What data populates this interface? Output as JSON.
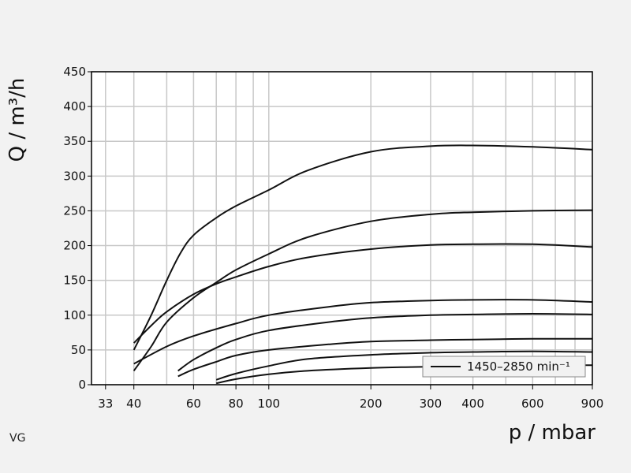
{
  "chart_data": {
    "type": "line",
    "title": "",
    "xlabel": "p / mbar",
    "ylabel": "Q / m³/h",
    "xscale": "log",
    "xlim": [
      30,
      900
    ],
    "ylim": [
      0,
      450
    ],
    "x_ticks": [
      33,
      40,
      60,
      80,
      100,
      200,
      300,
      400,
      600,
      900
    ],
    "x_tick_labels": [
      "33",
      "40",
      "60",
      "80",
      "100",
      "200",
      "300",
      "400",
      "600",
      "900"
    ],
    "x_minor_grid": [
      50,
      70,
      90,
      500,
      700,
      800
    ],
    "y_ticks": [
      0,
      50,
      100,
      150,
      200,
      250,
      300,
      350,
      400,
      450
    ],
    "y_tick_labels": [
      "0",
      "50",
      "100",
      "150",
      "200",
      "250",
      "300",
      "350",
      "400",
      "450"
    ],
    "grid": true,
    "legend": {
      "label": "1450–2850 min⁻¹",
      "placement": "bottom-right"
    },
    "line_color": "#111111",
    "series": [
      {
        "points": [
          [
            40,
            50
          ],
          [
            45,
            100
          ],
          [
            50,
            150
          ],
          [
            55,
            190
          ],
          [
            60,
            215
          ],
          [
            70,
            240
          ],
          [
            80,
            257
          ],
          [
            100,
            280
          ],
          [
            130,
            308
          ],
          [
            200,
            335
          ],
          [
            300,
            343
          ],
          [
            400,
            344
          ],
          [
            600,
            342
          ],
          [
            900,
            338
          ]
        ]
      },
      {
        "points": [
          [
            40,
            20
          ],
          [
            45,
            55
          ],
          [
            50,
            90
          ],
          [
            60,
            125
          ],
          [
            70,
            147
          ],
          [
            80,
            165
          ],
          [
            100,
            188
          ],
          [
            130,
            212
          ],
          [
            200,
            235
          ],
          [
            300,
            245
          ],
          [
            400,
            248
          ],
          [
            600,
            250
          ],
          [
            900,
            251
          ]
        ]
      },
      {
        "points": [
          [
            40,
            60
          ],
          [
            45,
            85
          ],
          [
            50,
            105
          ],
          [
            60,
            130
          ],
          [
            70,
            145
          ],
          [
            80,
            155
          ],
          [
            100,
            170
          ],
          [
            130,
            183
          ],
          [
            200,
            195
          ],
          [
            300,
            201
          ],
          [
            400,
            202
          ],
          [
            600,
            202
          ],
          [
            900,
            198
          ]
        ]
      },
      {
        "points": [
          [
            40,
            30
          ],
          [
            50,
            55
          ],
          [
            60,
            70
          ],
          [
            80,
            88
          ],
          [
            100,
            100
          ],
          [
            150,
            112
          ],
          [
            200,
            118
          ],
          [
            300,
            121
          ],
          [
            400,
            122
          ],
          [
            600,
            122
          ],
          [
            900,
            119
          ]
        ]
      },
      {
        "points": [
          [
            54,
            20
          ],
          [
            60,
            36
          ],
          [
            70,
            53
          ],
          [
            80,
            65
          ],
          [
            100,
            78
          ],
          [
            150,
            90
          ],
          [
            200,
            96
          ],
          [
            300,
            100
          ],
          [
            400,
            101
          ],
          [
            600,
            102
          ],
          [
            900,
            101
          ]
        ]
      },
      {
        "points": [
          [
            54,
            12
          ],
          [
            60,
            22
          ],
          [
            70,
            33
          ],
          [
            80,
            42
          ],
          [
            100,
            50
          ],
          [
            150,
            58
          ],
          [
            200,
            62
          ],
          [
            300,
            64
          ],
          [
            400,
            65
          ],
          [
            600,
            66
          ],
          [
            900,
            66
          ]
        ]
      },
      {
        "points": [
          [
            70,
            7
          ],
          [
            80,
            16
          ],
          [
            100,
            27
          ],
          [
            130,
            37
          ],
          [
            200,
            43
          ],
          [
            300,
            46
          ],
          [
            400,
            47
          ],
          [
            600,
            48
          ],
          [
            900,
            47
          ]
        ]
      },
      {
        "points": [
          [
            70,
            2
          ],
          [
            80,
            8
          ],
          [
            100,
            15
          ],
          [
            130,
            20
          ],
          [
            200,
            24
          ],
          [
            300,
            26
          ],
          [
            400,
            27
          ],
          [
            600,
            28
          ],
          [
            900,
            28
          ]
        ]
      }
    ]
  },
  "footer": {
    "code": "VG"
  }
}
